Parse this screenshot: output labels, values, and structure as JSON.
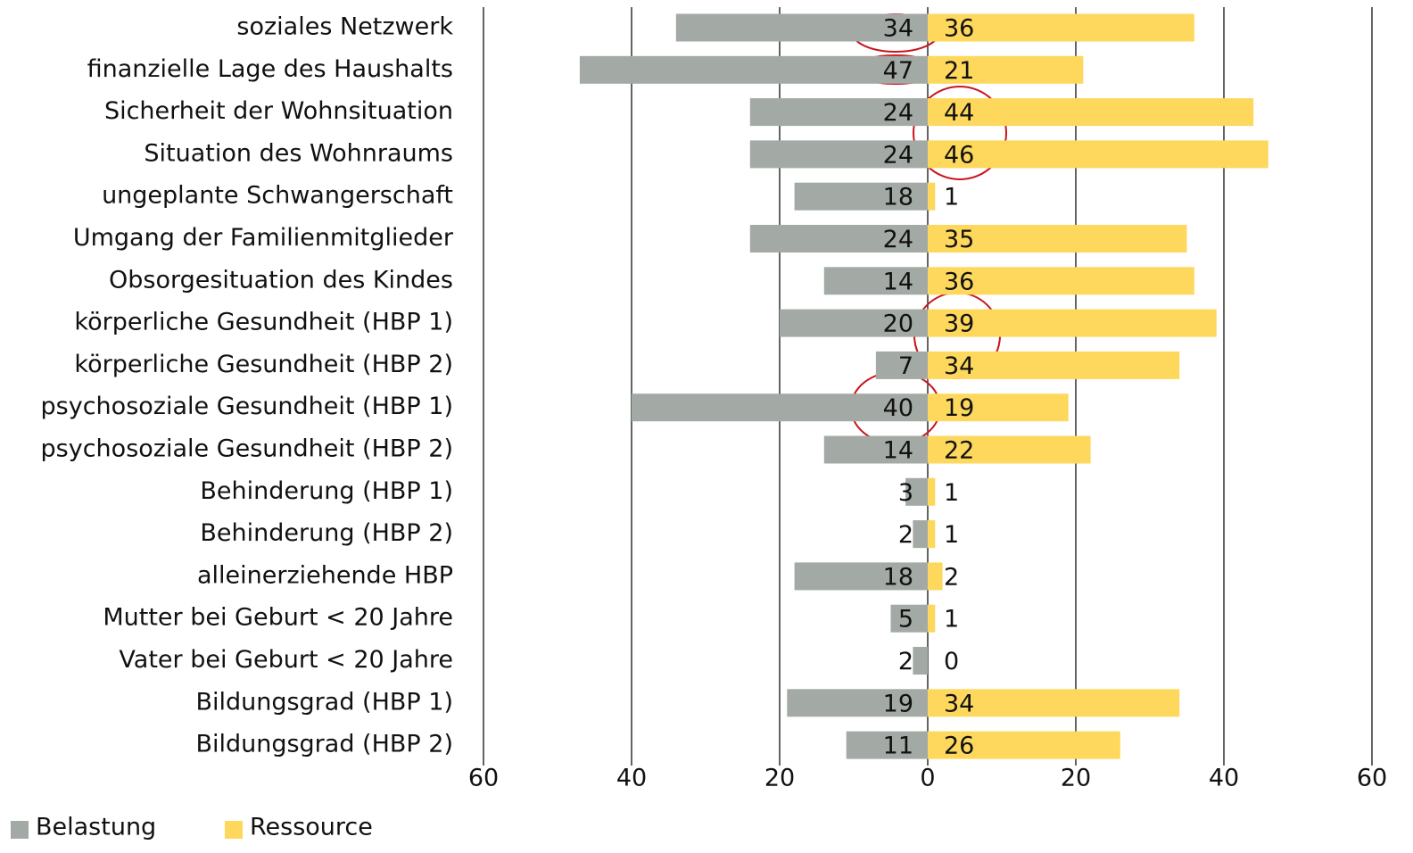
{
  "chart_data": {
    "type": "bar",
    "orientation": "horizontal",
    "diverging": true,
    "categories": [
      "soziales Netzwerk",
      "finanzielle Lage des Haushalts",
      "Sicherheit der Wohnsituation",
      "Situation des Wohnraums",
      "ungeplante Schwangerschaft",
      "Umgang der Familienmitglieder",
      "Obsorgesituation des Kindes",
      "körperliche Gesundheit (HBP 1)",
      "körperliche Gesundheit (HBP 2)",
      "psychosoziale Gesundheit (HBP 1)",
      "psychosoziale Gesundheit (HBP 2)",
      "Behinderung (HBP 1)",
      "Behinderung (HBP 2)",
      "alleinerziehende HBP",
      "Mutter bei Geburt < 20 Jahre",
      "Vater bei Geburt < 20 Jahre",
      "Bildungsgrad (HBP 1)",
      "Bildungsgrad (HBP 2)"
    ],
    "series": [
      {
        "name": "Belastung",
        "color": "#a3aaa5",
        "values": [
          -34,
          -47,
          -24,
          -24,
          -18,
          -24,
          -14,
          -20,
          -7,
          -40,
          -14,
          -3,
          -2,
          -18,
          -5,
          -2,
          -19,
          -11
        ],
        "value_labels": [
          "34",
          "47",
          "24",
          "24",
          "18",
          "24",
          "14",
          "20",
          "7",
          "40",
          "14",
          "3",
          "2",
          "18",
          "5",
          "2",
          "19",
          "11"
        ]
      },
      {
        "name": "Ressource",
        "color": "#fdd85c",
        "values": [
          36,
          21,
          44,
          46,
          1,
          35,
          36,
          39,
          34,
          19,
          22,
          1,
          1,
          2,
          1,
          0,
          34,
          26
        ]
      }
    ],
    "xlim": [
      -60,
      60
    ],
    "xticks": [
      {
        "value": -60,
        "label": "60"
      },
      {
        "value": -40,
        "label": "40"
      },
      {
        "value": -20,
        "label": "20"
      },
      0,
      20,
      40,
      60
    ],
    "grid": true,
    "legend": "bottom-left"
  }
}
